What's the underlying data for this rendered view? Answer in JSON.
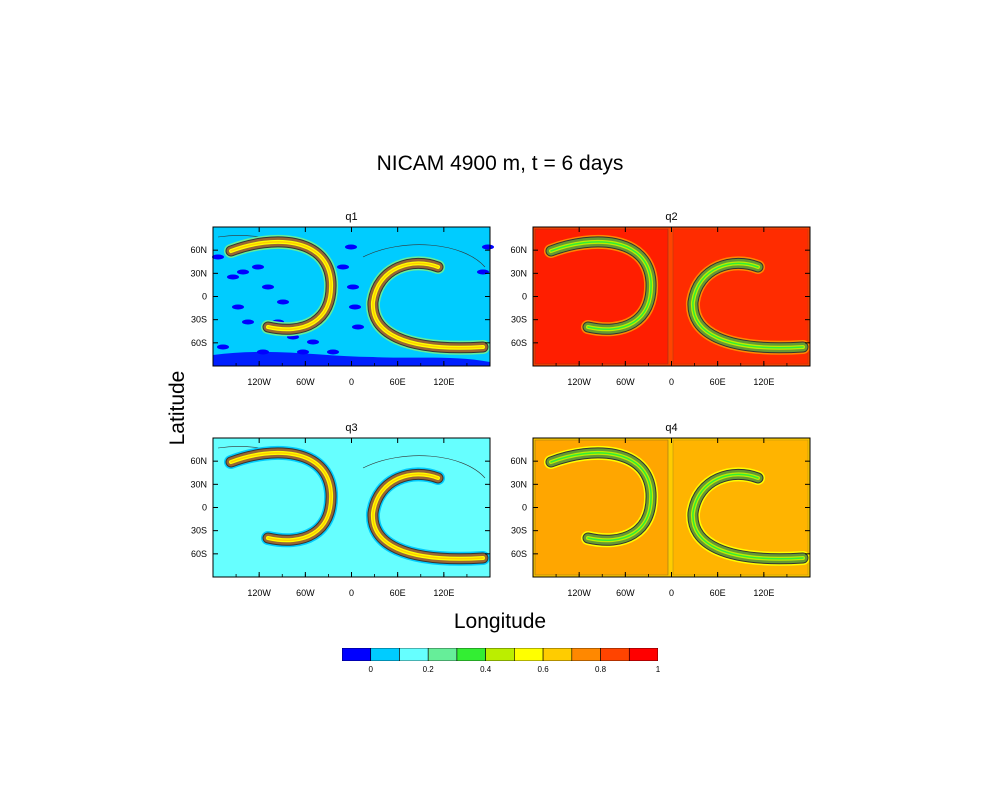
{
  "figure": {
    "title": "NICAM 4900 m, t = 6 days",
    "xlabel": "Longitude",
    "ylabel": "Latitude"
  },
  "colors": {
    "colorbar": [
      "#0000ff",
      "#00ccff",
      "#66ffff",
      "#66ee99",
      "#33ee33",
      "#bbee00",
      "#ffff00",
      "#ffcc00",
      "#ff8800",
      "#ff4400",
      "#ff0000"
    ]
  },
  "chart_data": [
    {
      "type": "heatmap",
      "title": "q1",
      "x_ticks": [
        "120W",
        "60W",
        "0",
        "60E",
        "120E"
      ],
      "y_ticks": [
        "60N",
        "30N",
        "0",
        "30S",
        "60S"
      ],
      "background_level": 1,
      "note_fill": "cyan background with dark blue noise on west half and two brown/green hook filaments"
    },
    {
      "type": "heatmap",
      "title": "q2",
      "x_ticks": [
        "120W",
        "60W",
        "0",
        "60E",
        "120E"
      ],
      "y_ticks": [
        "60N",
        "30N",
        "0",
        "30S",
        "60S"
      ],
      "background_level": 9
    },
    {
      "type": "heatmap",
      "title": "q3",
      "x_ticks": [
        "120W",
        "60W",
        "0",
        "60E",
        "120E"
      ],
      "y_ticks": [
        "60N",
        "30N",
        "0",
        "30S",
        "60S"
      ],
      "background_level": 2
    },
    {
      "type": "heatmap",
      "title": "q4",
      "x_ticks": [
        "120W",
        "60W",
        "0",
        "60E",
        "120E"
      ],
      "y_ticks": [
        "60N",
        "30N",
        "0",
        "30S",
        "60S"
      ],
      "background_level": 7
    }
  ],
  "colorbar": {
    "labels": [
      "0",
      "0.2",
      "0.4",
      "0.6",
      "0.8",
      "1"
    ]
  }
}
